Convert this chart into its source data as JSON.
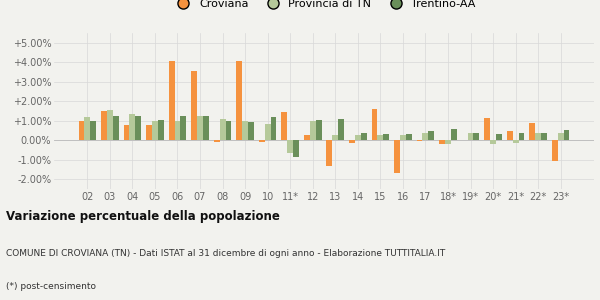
{
  "categories": [
    "02",
    "03",
    "04",
    "05",
    "06",
    "07",
    "08",
    "09",
    "10",
    "11*",
    "12",
    "13",
    "14",
    "15",
    "16",
    "17",
    "18*",
    "19*",
    "20*",
    "21*",
    "22*",
    "23*"
  ],
  "croviana": [
    1.0,
    1.5,
    0.8,
    0.8,
    4.05,
    3.55,
    -0.1,
    4.05,
    -0.1,
    1.45,
    0.25,
    -1.3,
    -0.15,
    1.6,
    -1.7,
    -0.05,
    -0.2,
    0.0,
    1.15,
    0.45,
    0.9,
    -1.05
  ],
  "provincia_tn": [
    1.2,
    1.55,
    1.35,
    1.0,
    1.0,
    1.25,
    1.1,
    1.0,
    0.85,
    -0.65,
    1.0,
    0.25,
    0.25,
    0.25,
    0.25,
    0.35,
    -0.2,
    0.35,
    -0.2,
    -0.15,
    0.35,
    0.35
  ],
  "trentino_aa": [
    1.0,
    1.25,
    1.25,
    1.05,
    1.25,
    1.25,
    1.0,
    0.95,
    1.2,
    -0.85,
    1.05,
    1.1,
    0.35,
    0.3,
    0.3,
    0.45,
    0.6,
    0.35,
    0.3,
    0.35,
    0.35,
    0.55
  ],
  "color_croviana": "#f5923e",
  "color_provincia": "#b5c99a",
  "color_trentino": "#6a8f5a",
  "title_bold": "Variazione percentuale della popolazione",
  "subtitle": "COMUNE DI CROVIANA (TN) - Dati ISTAT al 31 dicembre di ogni anno - Elaborazione TUTTITALIA.IT",
  "footnote": "(*) post-censimento",
  "ylim": [
    -2.5,
    5.5
  ],
  "yticks": [
    -2.0,
    -1.0,
    0.0,
    1.0,
    2.0,
    3.0,
    4.0,
    5.0
  ],
  "ytick_labels": [
    "-2.00%",
    "-1.00%",
    "0.00%",
    "+1.00%",
    "+2.00%",
    "+3.00%",
    "+4.00%",
    "+5.00%"
  ],
  "bg_color": "#f2f2ee",
  "legend_labels": [
    "Croviana",
    "Provincia di TN",
    "Trentino-AA"
  ],
  "bar_width": 0.26,
  "title_fontsize": 8.5,
  "subtitle_fontsize": 6.5,
  "footnote_fontsize": 6.5,
  "tick_fontsize": 7
}
